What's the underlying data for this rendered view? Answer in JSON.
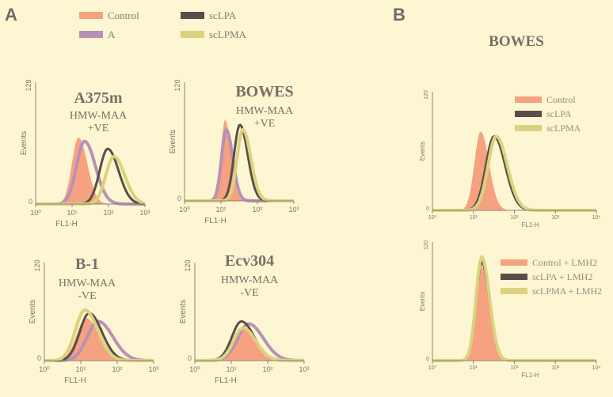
{
  "panel_labels": {
    "a": "A",
    "b": "B"
  },
  "colors": {
    "control": "#f6a17f",
    "a": "#b792b7",
    "sclpa": "#5b4d4a",
    "sclpma": "#dcd27e",
    "axis": "#8d827b",
    "background": "#fdf6d2"
  },
  "legend_a": {
    "items": [
      {
        "key": "control",
        "label": "Control"
      },
      {
        "key": "a",
        "label": "A"
      },
      {
        "key": "sclpa",
        "label": "scLPA"
      },
      {
        "key": "sclpma",
        "label": "scLPMA"
      }
    ]
  },
  "panel_b_title": "BOWES",
  "chart_data": [
    {
      "id": "a375m",
      "type": "area",
      "panel": "A",
      "title": "A375m",
      "subtitle": [
        "HMW-MAA",
        "+VE"
      ],
      "xlabel": "FL1-H",
      "ylabel": "Events",
      "xscale": "log",
      "xlim": [
        1,
        1000
      ],
      "ylim": [
        0,
        128
      ],
      "xticks": [
        "10⁰",
        "10¹",
        "10²",
        "10³"
      ],
      "yticks": [
        "0",
        "128"
      ],
      "series": [
        {
          "key": "control",
          "name": "Control",
          "fill": true,
          "peak": 15,
          "height": 70,
          "width": 0.18
        },
        {
          "key": "a",
          "name": "A",
          "fill": false,
          "peak": 22,
          "height": 66,
          "width": 0.22
        },
        {
          "key": "sclpa",
          "name": "scLPA",
          "fill": false,
          "peak": 95,
          "height": 58,
          "width": 0.22
        },
        {
          "key": "sclpma",
          "name": "scLPMA",
          "fill": false,
          "peak": 140,
          "height": 50,
          "width": 0.22
        }
      ]
    },
    {
      "id": "bowes_a",
      "type": "area",
      "panel": "A",
      "title": "BOWES",
      "subtitle": [
        "HMW-MAA",
        "+VE"
      ],
      "xlabel": "FL1-H",
      "ylabel": "Events",
      "xscale": "log",
      "xlim": [
        1,
        1000
      ],
      "ylim": [
        0,
        120
      ],
      "xticks": [
        "10⁰",
        "10¹",
        "10²",
        "10³"
      ],
      "yticks": [
        "0",
        "120"
      ],
      "series": [
        {
          "key": "control",
          "name": "Control",
          "fill": true,
          "peak": 13,
          "height": 82,
          "width": 0.12
        },
        {
          "key": "a",
          "name": "A",
          "fill": false,
          "peak": 14,
          "height": 72,
          "width": 0.13
        },
        {
          "key": "sclpa",
          "name": "scLPA",
          "fill": false,
          "peak": 33,
          "height": 77,
          "width": 0.16
        },
        {
          "key": "sclpma",
          "name": "scLPMA",
          "fill": false,
          "peak": 40,
          "height": 72,
          "width": 0.16
        }
      ]
    },
    {
      "id": "b1",
      "type": "area",
      "panel": "A",
      "title": "B-1",
      "subtitle": [
        "HMW-MAA",
        "-VE"
      ],
      "xlabel": "FL1-H",
      "ylabel": "Events",
      "xscale": "log",
      "xlim": [
        1,
        1000
      ],
      "ylim": [
        0,
        120
      ],
      "xticks": [
        "10⁰",
        "10¹",
        "10²",
        "10³"
      ],
      "yticks": [
        "0",
        "120"
      ],
      "series": [
        {
          "key": "control",
          "name": "Control",
          "fill": true,
          "peak": 14,
          "height": 52,
          "width": 0.26
        },
        {
          "key": "a",
          "name": "A",
          "fill": false,
          "peak": 30,
          "height": 48,
          "width": 0.3
        },
        {
          "key": "sclpa",
          "name": "scLPA",
          "fill": false,
          "peak": 17,
          "height": 58,
          "width": 0.26
        },
        {
          "key": "sclpma",
          "name": "scLPMA",
          "fill": false,
          "peak": 13,
          "height": 62,
          "width": 0.26
        }
      ]
    },
    {
      "id": "ecv304",
      "type": "area",
      "panel": "A",
      "title": "Ecv304",
      "subtitle": [
        "HMW-MAA",
        "-VE"
      ],
      "xlabel": "FL1-H",
      "ylabel": "Events",
      "xscale": "log",
      "xlim": [
        1,
        1000
      ],
      "ylim": [
        0,
        120
      ],
      "xticks": [
        "10⁰",
        "10¹",
        "10²",
        "10³"
      ],
      "yticks": [
        "0",
        "120"
      ],
      "series": [
        {
          "key": "control",
          "name": "Control",
          "fill": true,
          "peak": 20,
          "height": 40,
          "width": 0.24
        },
        {
          "key": "a",
          "name": "A",
          "fill": false,
          "peak": 30,
          "height": 45,
          "width": 0.3
        },
        {
          "key": "sclpa",
          "name": "scLPA",
          "fill": false,
          "peak": 19,
          "height": 48,
          "width": 0.26
        },
        {
          "key": "sclpma",
          "name": "scLPMA",
          "fill": false,
          "peak": 21,
          "height": 40,
          "width": 0.26
        }
      ]
    },
    {
      "id": "bowes_b_top",
      "type": "area",
      "panel": "B",
      "title": "",
      "subtitle": [],
      "xlabel": "FL1-H",
      "ylabel": "Events",
      "xscale": "log",
      "xlim": [
        1,
        10000
      ],
      "ylim": [
        0,
        120
      ],
      "xticks": [
        "10⁰",
        "10¹",
        "10²",
        "10³",
        "10⁴"
      ],
      "yticks": [
        "0",
        "120"
      ],
      "legend": [
        {
          "key": "control",
          "label": "Control"
        },
        {
          "key": "sclpa",
          "label": "scLPA"
        },
        {
          "key": "sclpma",
          "label": "scLPMA"
        }
      ],
      "series": [
        {
          "key": "control",
          "name": "Control",
          "fill": true,
          "peak": 15,
          "height": 80,
          "width": 0.15
        },
        {
          "key": "sclpa",
          "name": "scLPA",
          "fill": false,
          "peak": 32,
          "height": 75,
          "width": 0.2
        },
        {
          "key": "sclpma",
          "name": "scLPMA",
          "fill": false,
          "peak": 36,
          "height": 75,
          "width": 0.2
        }
      ]
    },
    {
      "id": "bowes_b_bottom",
      "type": "area",
      "panel": "B",
      "title": "",
      "subtitle": [],
      "xlabel": "FL1-H",
      "ylabel": "Events",
      "xscale": "log",
      "xlim": [
        1,
        10000
      ],
      "ylim": [
        0,
        120
      ],
      "xticks": [
        "10⁰",
        "10¹",
        "10²",
        "10³",
        "10⁴"
      ],
      "yticks": [
        "0",
        "120"
      ],
      "legend": [
        {
          "key": "control",
          "label": "Control + LMH2"
        },
        {
          "key": "sclpa",
          "label": "scLPA + LMH2"
        },
        {
          "key": "sclpma",
          "label": "scLPMA + LMH2"
        }
      ],
      "series": [
        {
          "key": "control",
          "name": "Control + LMH2",
          "fill": true,
          "peak": 16,
          "height": 95,
          "width": 0.13
        },
        {
          "key": "sclpa",
          "name": "scLPA + LMH2",
          "fill": false,
          "peak": 16,
          "height": 100,
          "width": 0.14
        },
        {
          "key": "sclpma",
          "name": "scLPMA + LMH2",
          "fill": false,
          "peak": 16,
          "height": 105,
          "width": 0.14
        }
      ]
    }
  ]
}
